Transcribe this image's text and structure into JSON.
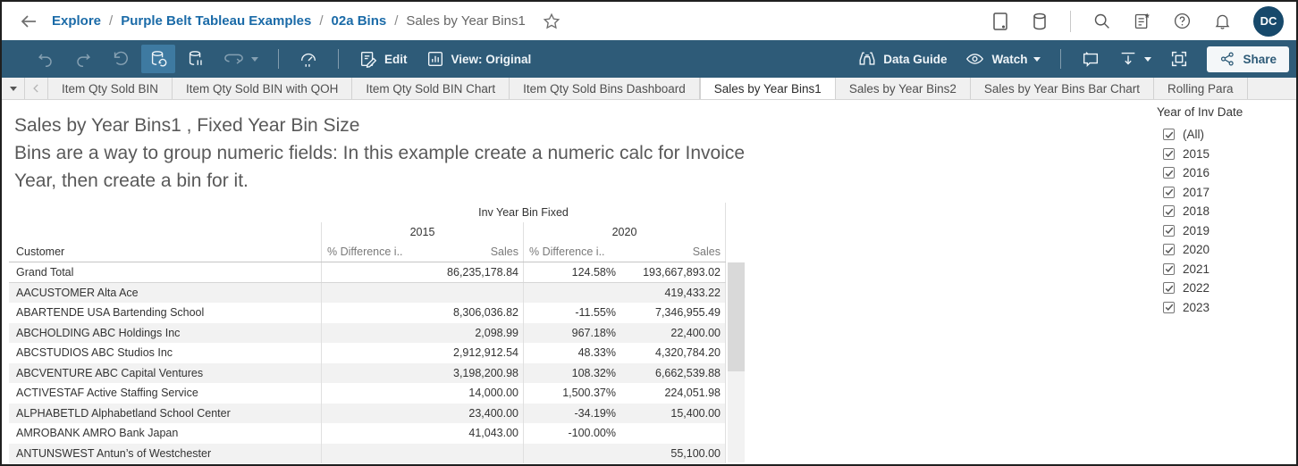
{
  "topbar": {
    "breadcrumb": [
      {
        "label": "Explore",
        "link": true
      },
      {
        "label": "Purple Belt Tableau Examples",
        "link": true
      },
      {
        "label": "02a Bins",
        "link": true
      },
      {
        "label": "Sales by Year Bins1",
        "link": false
      }
    ],
    "avatar": "DC"
  },
  "toolbar": {
    "edit_label": "Edit",
    "view_label": "View: Original",
    "data_guide_label": "Data Guide",
    "watch_label": "Watch",
    "share_label": "Share"
  },
  "tabs": {
    "items": [
      {
        "label": "Item Qty Sold BIN",
        "active": false
      },
      {
        "label": "Item Qty Sold BIN with QOH",
        "active": false
      },
      {
        "label": "Item Qty Sold BIN Chart",
        "active": false
      },
      {
        "label": "Item Qty Sold Bins Dashboard",
        "active": false
      },
      {
        "label": "Sales by Year Bins1",
        "active": true
      },
      {
        "label": "Sales by Year Bins2",
        "active": false
      },
      {
        "label": "Sales by Year Bins Bar Chart",
        "active": false
      },
      {
        "label": "Rolling Para",
        "active": false
      }
    ]
  },
  "sheet": {
    "title": "Sales by Year Bins1 , Fixed Year Bin Size",
    "subtitle": "Bins are a way to group numeric fields: In this example create a numeric calc for Invoice Year, then create a bin for it."
  },
  "table": {
    "col_header": "Inv Year Bin Fixed",
    "row_header": "Customer",
    "year_groups": [
      "2015",
      "2020"
    ],
    "sub_headers": [
      "% Difference i..",
      "Sales"
    ],
    "rows": [
      {
        "customer": "Grand Total",
        "total": true,
        "v": [
          "",
          "86,235,178.84",
          "124.58%",
          "193,667,893.02"
        ]
      },
      {
        "customer": "AACUSTOMER Alta Ace",
        "v": [
          "",
          "",
          "",
          "419,433.22"
        ]
      },
      {
        "customer": "ABARTENDE USA Bartending School",
        "v": [
          "",
          "8,306,036.82",
          "-11.55%",
          "7,346,955.49"
        ]
      },
      {
        "customer": "ABCHOLDING ABC Holdings Inc",
        "v": [
          "",
          "2,098.99",
          "967.18%",
          "22,400.00"
        ]
      },
      {
        "customer": "ABCSTUDIOS ABC Studios Inc",
        "v": [
          "",
          "2,912,912.54",
          "48.33%",
          "4,320,784.20"
        ]
      },
      {
        "customer": "ABCVENTURE ABC Capital Ventures",
        "v": [
          "",
          "3,198,200.98",
          "108.32%",
          "6,662,539.88"
        ]
      },
      {
        "customer": "ACTIVESTAF Active Staffing Service",
        "v": [
          "",
          "14,000.00",
          "1,500.37%",
          "224,051.98"
        ]
      },
      {
        "customer": "ALPHABETLD Alphabetland School Center",
        "v": [
          "",
          "23,400.00",
          "-34.19%",
          "15,400.00"
        ]
      },
      {
        "customer": "AMROBANK AMRO Bank Japan",
        "v": [
          "",
          "41,043.00",
          "-100.00%",
          ""
        ]
      },
      {
        "customer": "ANTUNSWEST Antun’s of Westchester",
        "v": [
          "",
          "",
          "",
          "55,100.00"
        ]
      }
    ]
  },
  "filter": {
    "title": "Year of Inv Date",
    "items": [
      {
        "label": "(All)",
        "checked": true
      },
      {
        "label": "2015",
        "checked": true
      },
      {
        "label": "2016",
        "checked": true
      },
      {
        "label": "2017",
        "checked": true
      },
      {
        "label": "2018",
        "checked": true
      },
      {
        "label": "2019",
        "checked": true
      },
      {
        "label": "2020",
        "checked": true
      },
      {
        "label": "2021",
        "checked": true
      },
      {
        "label": "2022",
        "checked": true
      },
      {
        "label": "2023",
        "checked": true
      }
    ]
  },
  "colors": {
    "toolbar_blue": "#2e5b78",
    "active_tool_blue": "#3e7aa1",
    "link_blue": "#1b6ba8",
    "avatar_blue": "#17496b",
    "band_gray": "#f2f2f2"
  }
}
